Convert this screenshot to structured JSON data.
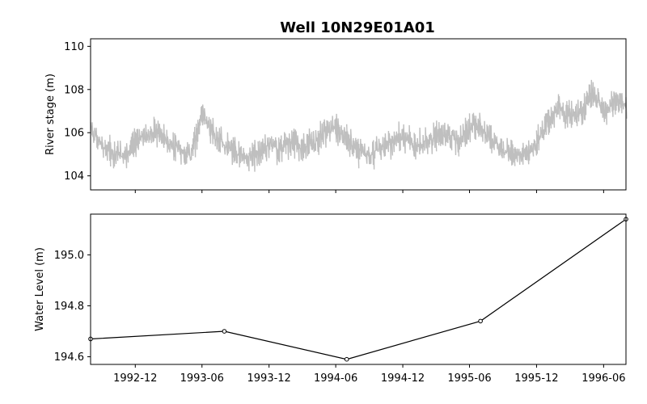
{
  "chart_data": {
    "title": "Well 10N29E01A01",
    "panels": [
      {
        "type": "line",
        "ylabel": "River stage (m)",
        "ylim": [
          103.35,
          110.35
        ],
        "yticks": [
          104,
          106,
          108,
          110
        ],
        "color": "#bfbfbf",
        "series": [
          {
            "x": [
              "1992-08-01",
              "1992-09-01",
              "1992-10-01",
              "1992-11-01",
              "1992-12-01",
              "1993-01-01",
              "1993-02-01",
              "1993-03-01",
              "1993-04-01",
              "1993-05-01",
              "1993-06-01",
              "1993-07-01",
              "1993-08-01",
              "1993-09-01",
              "1993-10-01",
              "1993-11-01",
              "1993-12-01",
              "1994-01-01",
              "1994-02-01",
              "1994-03-01",
              "1994-04-01",
              "1994-05-01",
              "1994-06-01",
              "1994-07-01",
              "1994-08-01",
              "1994-09-01",
              "1994-10-01",
              "1994-11-01",
              "1994-12-01",
              "1995-01-01",
              "1995-02-01",
              "1995-03-01",
              "1995-04-01",
              "1995-05-01",
              "1995-06-01",
              "1995-07-01",
              "1995-08-01",
              "1995-09-01",
              "1995-10-01",
              "1995-11-01",
              "1995-12-01",
              "1996-01-01",
              "1996-02-01",
              "1996-03-01",
              "1996-04-01",
              "1996-05-01",
              "1996-06-01",
              "1996-07-01",
              "1996-08-01"
            ],
            "values": [
              106.2,
              105.4,
              105.1,
              105.0,
              105.6,
              105.9,
              106.1,
              105.5,
              105.2,
              105.0,
              106.9,
              106.0,
              105.4,
              105.1,
              104.9,
              105.1,
              105.5,
              105.3,
              105.6,
              105.4,
              105.5,
              106.1,
              106.2,
              105.7,
              105.2,
              105.0,
              105.3,
              105.6,
              105.9,
              105.4,
              105.7,
              105.8,
              106.0,
              105.6,
              106.3,
              106.4,
              105.7,
              105.2,
              105.1,
              105.0,
              105.6,
              106.6,
              107.1,
              106.8,
              106.9,
              107.9,
              107.0,
              107.5,
              107.3
            ]
          }
        ]
      },
      {
        "type": "line",
        "ylabel": "Water Level (m)",
        "ylim": [
          194.57,
          195.16
        ],
        "yticks": [
          194.6,
          194.8,
          195.0
        ],
        "color": "#000000",
        "series": [
          {
            "x": [
              "1992-08-01",
              "1993-08-01",
              "1994-07-01",
              "1995-07-01",
              "1996-08-01"
            ],
            "values": [
              194.67,
              194.7,
              194.59,
              194.74,
              195.14
            ]
          }
        ]
      }
    ],
    "xrange": [
      "1992-08-01",
      "1996-08-01"
    ],
    "xticks": [
      "1992-12",
      "1993-06",
      "1993-12",
      "1994-06",
      "1994-12",
      "1995-06",
      "1995-12",
      "1996-06"
    ]
  }
}
